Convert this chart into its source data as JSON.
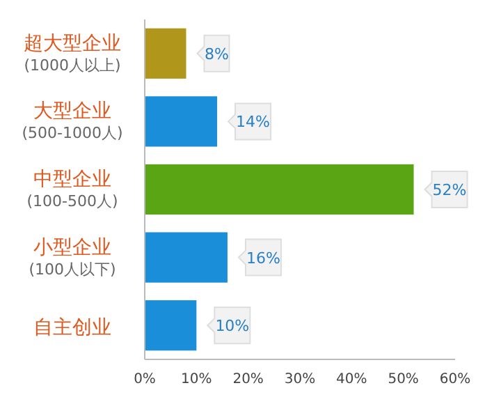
{
  "chart_data": {
    "type": "bar",
    "orientation": "horizontal",
    "categories": [
      "超大型企业\n(1000人以上)",
      "大型企业\n(500-1000人)",
      "中型企业\n(100-500人)",
      "小型企业\n(100人以下)",
      "自主创业"
    ],
    "values": [
      8,
      14,
      52,
      16,
      10
    ],
    "colors": [
      "#b0961a",
      "#1a8ed8",
      "#5aa514",
      "#1a8ed8",
      "#1a8ed8"
    ],
    "xlim": [
      0,
      60
    ],
    "xticks": [
      {
        "value": 0,
        "label": "0%"
      },
      {
        "value": 10,
        "label": "10%"
      },
      {
        "value": 20,
        "label": "20%"
      },
      {
        "value": 30,
        "label": "30%"
      },
      {
        "value": 40,
        "label": "40%"
      },
      {
        "value": 50,
        "label": "50%"
      },
      {
        "value": 60,
        "label": "60%"
      }
    ],
    "value_labels": [
      "8%",
      "14%",
      "52%",
      "16%",
      "10%"
    ],
    "grid": false
  }
}
